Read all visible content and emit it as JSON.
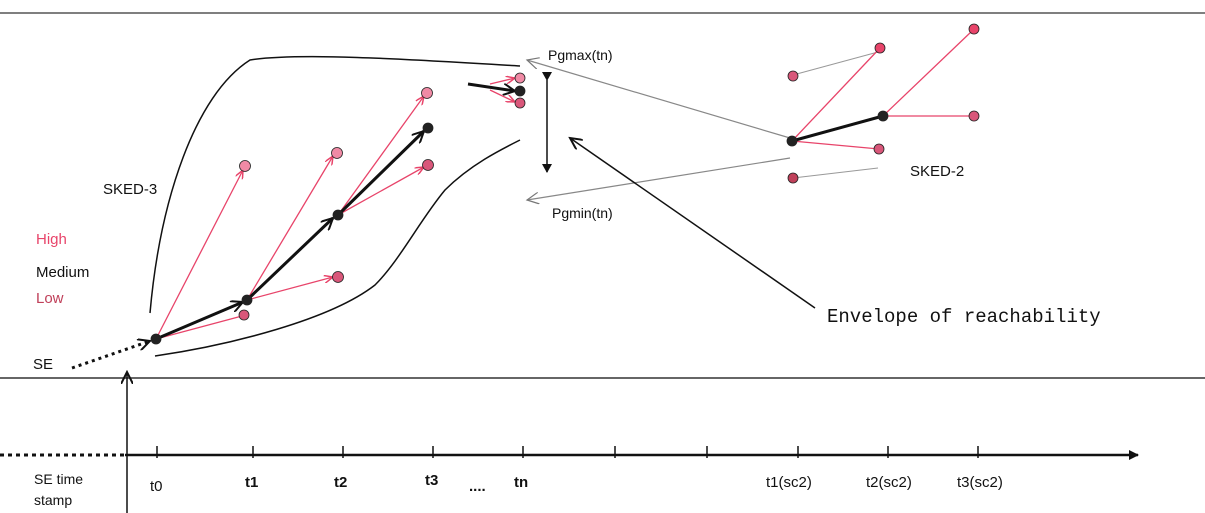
{
  "colors": {
    "high": "#e8446a",
    "low": "#c0405a",
    "medium": "#111111",
    "node_fill": "#d9577a",
    "node_light": "#f08aa5",
    "thin_line": "#999999"
  },
  "labels": {
    "sked3": "SKED-3",
    "sked2": "SKED-2",
    "high": "High",
    "medium": "Medium",
    "low": "Low",
    "se": "SE",
    "pgmax": "Pgmax(tn)",
    "pgmin": "Pgmin(tn)",
    "envelope": "Envelope of reachability",
    "se_time_stamp_line1": "SE time",
    "se_time_stamp_line2": "stamp",
    "ellipsis": "...."
  },
  "timeline": {
    "ticks": [
      "t0",
      "t1",
      "t2",
      "t3",
      "tn",
      "t1(sc2)",
      "t2(sc2)",
      "t3(sc2)"
    ]
  }
}
